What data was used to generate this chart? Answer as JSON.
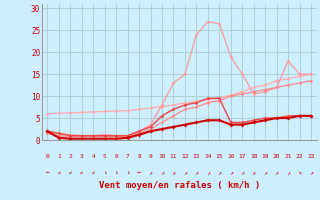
{
  "xlabel": "Vent moyen/en rafales ( km/h )",
  "bg_color": "#cceeff",
  "grid_color": "#aacccc",
  "xlabel_color": "#cc0000",
  "series": [
    {
      "comment": "light pink diagonal line top - nearly straight from 0,6 to 23,15",
      "x": [
        0,
        1,
        2,
        3,
        4,
        5,
        6,
        7,
        8,
        9,
        10,
        11,
        12,
        13,
        14,
        15,
        16,
        17,
        18,
        19,
        20,
        21,
        22,
        23
      ],
      "y": [
        6.0,
        6.1,
        6.2,
        6.3,
        6.4,
        6.5,
        6.6,
        6.7,
        7.0,
        7.3,
        7.6,
        8.0,
        8.4,
        8.8,
        9.2,
        9.6,
        10.2,
        11.0,
        12.0,
        12.5,
        13.5,
        14.0,
        14.5,
        15.0
      ],
      "color": "#ffaaaa",
      "lw": 0.9,
      "marker": "D",
      "ms": 1.8
    },
    {
      "comment": "light pink line with big peak at 14=27",
      "x": [
        0,
        1,
        2,
        3,
        4,
        5,
        6,
        7,
        8,
        9,
        10,
        11,
        12,
        13,
        14,
        15,
        16,
        17,
        18,
        19,
        20,
        21,
        22,
        23
      ],
      "y": [
        2.0,
        1.5,
        1.2,
        1.0,
        1.0,
        1.2,
        1.0,
        1.0,
        2.0,
        3.5,
        8.0,
        13.0,
        15.0,
        24.0,
        27.0,
        26.5,
        19.0,
        15.0,
        10.5,
        11.0,
        12.0,
        18.0,
        15.0,
        15.0
      ],
      "color": "#ff9999",
      "lw": 0.9,
      "marker": "D",
      "ms": 1.8
    },
    {
      "comment": "medium pink second diagonal nearly straight",
      "x": [
        0,
        1,
        2,
        3,
        4,
        5,
        6,
        7,
        8,
        9,
        10,
        11,
        12,
        13,
        14,
        15,
        16,
        17,
        18,
        19,
        20,
        21,
        22,
        23
      ],
      "y": [
        1.5,
        1.0,
        0.8,
        0.8,
        0.8,
        0.8,
        0.8,
        0.8,
        1.5,
        2.5,
        4.0,
        5.5,
        7.0,
        7.5,
        8.5,
        9.0,
        10.0,
        10.5,
        11.0,
        11.5,
        12.0,
        12.5,
        13.0,
        13.5
      ],
      "color": "#ff8888",
      "lw": 0.9,
      "marker": "D",
      "ms": 1.8
    },
    {
      "comment": "medium red line with peak at 14-15 ~9",
      "x": [
        0,
        1,
        2,
        3,
        4,
        5,
        6,
        7,
        8,
        9,
        10,
        11,
        12,
        13,
        14,
        15,
        16,
        17,
        18,
        19,
        20,
        21,
        22,
        23
      ],
      "y": [
        2.0,
        1.5,
        1.0,
        1.0,
        1.0,
        1.0,
        1.0,
        1.0,
        2.0,
        3.0,
        5.5,
        7.0,
        8.0,
        8.5,
        9.5,
        9.5,
        4.0,
        4.0,
        4.5,
        5.0,
        5.0,
        5.5,
        5.5,
        5.5
      ],
      "color": "#ee4444",
      "lw": 1.0,
      "marker": "D",
      "ms": 1.8
    },
    {
      "comment": "dark red thick nearly flat line - median wind speed",
      "x": [
        0,
        1,
        2,
        3,
        4,
        5,
        6,
        7,
        8,
        9,
        10,
        11,
        12,
        13,
        14,
        15,
        16,
        17,
        18,
        19,
        20,
        21,
        22,
        23
      ],
      "y": [
        2.0,
        0.5,
        0.3,
        0.3,
        0.3,
        0.3,
        0.3,
        0.5,
        1.2,
        2.0,
        2.5,
        3.0,
        3.5,
        4.0,
        4.5,
        4.5,
        3.5,
        3.5,
        4.0,
        4.5,
        5.0,
        5.0,
        5.5,
        5.5
      ],
      "color": "#cc0000",
      "lw": 1.5,
      "marker": "D",
      "ms": 2.0
    }
  ],
  "wind_dirs": [
    "←",
    "↙",
    "↙",
    "↙",
    "↙",
    "↓",
    "↓",
    "↓",
    "→",
    "↗",
    "↗",
    "↗",
    "↗",
    "↗",
    "↗",
    "↗",
    "↗",
    "↗",
    "↗",
    "↗",
    "↗",
    "↗",
    "↘",
    "↗"
  ],
  "yticks": [
    0,
    5,
    10,
    15,
    20,
    25,
    30
  ],
  "xlim": [
    -0.5,
    23.5
  ],
  "ylim": [
    0,
    31
  ]
}
